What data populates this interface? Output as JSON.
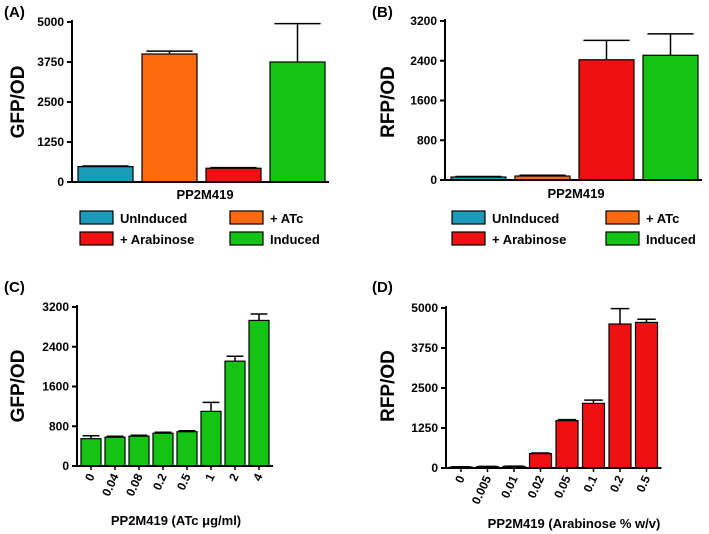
{
  "colors": {
    "uninduced": "#1B9BB8",
    "atc": "#FF6A0D",
    "arabinose": "#EE1111",
    "induced": "#14C314"
  },
  "chart_data": [
    {
      "id": "A",
      "panel_label": "(A)",
      "type": "bar",
      "ylabel": "GFP/OD",
      "xlabel": "PP2M419",
      "ylim": [
        0,
        5000
      ],
      "yticks": [
        0,
        1250,
        2500,
        3750,
        5000
      ],
      "categories": [
        "UnInduced",
        "+ ATc",
        "+ Arabinose",
        "Induced"
      ],
      "values": [
        480,
        4000,
        430,
        3750
      ],
      "errors": [
        20,
        90,
        20,
        1200
      ],
      "bar_colors": [
        "uninduced",
        "atc",
        "arabinose",
        "induced"
      ],
      "legend": [
        {
          "label": "UnInduced",
          "color": "uninduced"
        },
        {
          "label": "+ ATc",
          "color": "atc"
        },
        {
          "label": "+ Arabinose",
          "color": "arabinose"
        },
        {
          "label": "Induced",
          "color": "induced"
        }
      ]
    },
    {
      "id": "B",
      "panel_label": "(B)",
      "type": "bar",
      "ylabel": "RFP/OD",
      "xlabel": "PP2M419",
      "ylim": [
        0,
        3200
      ],
      "yticks": [
        0,
        800,
        1600,
        2400,
        3200
      ],
      "categories": [
        "UnInduced",
        "+ ATc",
        "+ Arabinose",
        "Induced"
      ],
      "values": [
        60,
        80,
        2420,
        2510
      ],
      "errors": [
        10,
        15,
        390,
        430
      ],
      "bar_colors": [
        "uninduced",
        "atc",
        "arabinose",
        "induced"
      ],
      "legend": [
        {
          "label": "UnInduced",
          "color": "uninduced"
        },
        {
          "label": "+ ATc",
          "color": "atc"
        },
        {
          "label": "+ Arabinose",
          "color": "arabinose"
        },
        {
          "label": "Induced",
          "color": "induced"
        }
      ]
    },
    {
      "id": "C",
      "panel_label": "(C)",
      "type": "bar",
      "ylabel": "GFP/OD",
      "xlabel": "PP2M419 (ATc μg/ml)",
      "ylim": [
        0,
        3200
      ],
      "yticks": [
        0,
        800,
        1600,
        2400,
        3200
      ],
      "categories": [
        "0",
        "0.04",
        "0.08",
        "0.2",
        "0.5",
        "1",
        "2",
        "4"
      ],
      "values": [
        550,
        580,
        600,
        660,
        690,
        1100,
        2110,
        2930
      ],
      "errors": [
        60,
        20,
        20,
        20,
        20,
        180,
        100,
        130
      ],
      "bar_colors": [
        "induced"
      ]
    },
    {
      "id": "D",
      "panel_label": "(D)",
      "type": "bar",
      "ylabel": "RFP/OD",
      "xlabel": "PP2M419 (Arabinose % w/v)",
      "ylim": [
        0,
        5000
      ],
      "yticks": [
        0,
        1250,
        2500,
        3750,
        5000
      ],
      "categories": [
        "0",
        "0.005",
        "0.01",
        "0.02",
        "0.05",
        "0.1",
        "0.2",
        "0.5"
      ],
      "values": [
        30,
        40,
        50,
        450,
        1480,
        2020,
        4500,
        4550
      ],
      "errors": [
        10,
        10,
        10,
        20,
        30,
        100,
        480,
        100
      ],
      "bar_colors": [
        "arabinose"
      ]
    }
  ]
}
